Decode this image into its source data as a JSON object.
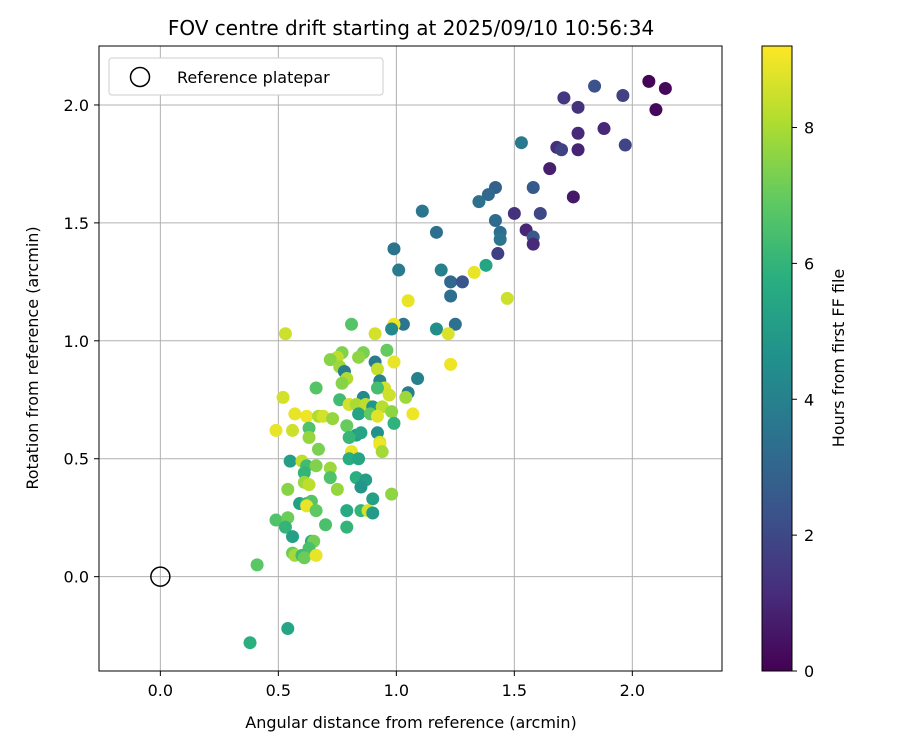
{
  "chart_data": {
    "type": "scatter",
    "title": "FOV centre drift starting at 2025/09/10 10:56:34",
    "xlabel": "Angular distance from reference (arcmin)",
    "ylabel": "Rotation from reference (arcmin)",
    "xlim": [
      -0.26,
      2.38
    ],
    "ylim": [
      -0.4,
      2.25
    ],
    "xticks": [
      "0.0",
      "0.5",
      "1.0",
      "1.5",
      "2.0"
    ],
    "yticks": [
      "0.0",
      "0.5",
      "1.0",
      "1.5",
      "2.0"
    ],
    "grid": true,
    "legend": {
      "position": "top-left",
      "entries": [
        "Reference platepar"
      ]
    },
    "reference": {
      "x": 0,
      "y": 0,
      "label": "Reference platepar"
    },
    "colorbar": {
      "label": "Hours from first FF file",
      "min": 0,
      "max": 9.2,
      "ticks": [
        "0",
        "2",
        "4",
        "6",
        "8"
      ],
      "colormap": "viridis"
    },
    "points": [
      [
        2.07,
        2.1,
        0.1
      ],
      [
        2.14,
        2.07,
        0.2
      ],
      [
        2.1,
        1.98,
        0.2
      ],
      [
        1.96,
        2.04,
        1.8
      ],
      [
        1.84,
        2.08,
        2.3
      ],
      [
        1.71,
        2.03,
        1.5
      ],
      [
        1.77,
        1.99,
        1.3
      ],
      [
        1.77,
        1.88,
        1.1
      ],
      [
        1.88,
        1.9,
        1.0
      ],
      [
        1.97,
        1.83,
        1.9
      ],
      [
        1.68,
        1.82,
        1.2
      ],
      [
        1.7,
        1.81,
        1.8
      ],
      [
        1.77,
        1.81,
        0.9
      ],
      [
        1.65,
        1.73,
        0.8
      ],
      [
        1.53,
        1.84,
        3.7
      ],
      [
        1.58,
        1.65,
        2.6
      ],
      [
        1.75,
        1.61,
        0.6
      ],
      [
        1.42,
        1.65,
        2.8
      ],
      [
        1.39,
        1.62,
        3.1
      ],
      [
        1.35,
        1.59,
        3.4
      ],
      [
        1.5,
        1.54,
        1.3
      ],
      [
        1.61,
        1.54,
        2.0
      ],
      [
        1.42,
        1.51,
        3.2
      ],
      [
        1.55,
        1.47,
        1.0
      ],
      [
        1.44,
        1.46,
        3.3
      ],
      [
        1.44,
        1.43,
        3.6
      ],
      [
        1.58,
        1.44,
        2.5
      ],
      [
        1.58,
        1.41,
        1.1
      ],
      [
        1.43,
        1.37,
        1.7
      ],
      [
        1.11,
        1.55,
        3.6
      ],
      [
        1.17,
        1.46,
        3.3
      ],
      [
        0.99,
        1.39,
        3.5
      ],
      [
        1.01,
        1.3,
        3.8
      ],
      [
        1.19,
        1.3,
        4.0
      ],
      [
        1.23,
        1.25,
        3.1
      ],
      [
        1.23,
        1.19,
        3.3
      ],
      [
        1.28,
        1.25,
        2.4
      ],
      [
        1.38,
        1.32,
        5.4
      ],
      [
        1.33,
        1.29,
        8.9
      ],
      [
        1.47,
        1.18,
        8.5
      ],
      [
        1.05,
        1.17,
        8.9
      ],
      [
        1.17,
        1.05,
        4.5
      ],
      [
        1.25,
        1.07,
        3.4
      ],
      [
        1.22,
        1.03,
        8.7
      ],
      [
        1.03,
        1.07,
        3.6
      ],
      [
        0.99,
        1.07,
        9.0
      ],
      [
        0.98,
        1.05,
        4.3
      ],
      [
        0.81,
        1.07,
        6.7
      ],
      [
        0.53,
        1.03,
        8.5
      ],
      [
        0.91,
        1.03,
        8.6
      ],
      [
        1.23,
        0.9,
        9.0
      ],
      [
        0.77,
        0.95,
        7.4
      ],
      [
        0.86,
        0.95,
        7.3
      ],
      [
        0.96,
        0.96,
        7.0
      ],
      [
        0.75,
        0.93,
        8.3
      ],
      [
        0.72,
        0.92,
        7.5
      ],
      [
        0.84,
        0.93,
        7.6
      ],
      [
        0.91,
        0.91,
        3.8
      ],
      [
        0.99,
        0.91,
        8.9
      ],
      [
        0.76,
        0.89,
        7.8
      ],
      [
        0.92,
        0.88,
        8.4
      ],
      [
        0.78,
        0.87,
        3.9
      ],
      [
        0.93,
        0.83,
        4.1
      ],
      [
        0.79,
        0.84,
        8.1
      ],
      [
        0.77,
        0.82,
        7.5
      ],
      [
        0.66,
        0.8,
        6.7
      ],
      [
        0.95,
        0.8,
        8.6
      ],
      [
        1.05,
        0.78,
        3.9
      ],
      [
        1.09,
        0.84,
        4.0
      ],
      [
        0.97,
        0.77,
        8.5
      ],
      [
        0.52,
        0.76,
        8.6
      ],
      [
        0.92,
        0.8,
        6.4
      ],
      [
        0.76,
        0.75,
        6.3
      ],
      [
        0.86,
        0.76,
        4.3
      ],
      [
        0.8,
        0.73,
        8.6
      ],
      [
        0.83,
        0.73,
        8.0
      ],
      [
        0.87,
        0.73,
        8.3
      ],
      [
        0.9,
        0.72,
        4.8
      ],
      [
        0.94,
        0.72,
        8.2
      ],
      [
        1.04,
        0.76,
        7.8
      ],
      [
        0.84,
        0.69,
        5.3
      ],
      [
        0.89,
        0.69,
        6.9
      ],
      [
        0.92,
        0.68,
        8.8
      ],
      [
        0.98,
        0.7,
        7.6
      ],
      [
        1.07,
        0.69,
        9.0
      ],
      [
        0.57,
        0.69,
        8.9
      ],
      [
        0.62,
        0.68,
        9.0
      ],
      [
        0.67,
        0.68,
        8.1
      ],
      [
        0.69,
        0.68,
        8.6
      ],
      [
        0.73,
        0.67,
        7.7
      ],
      [
        0.63,
        0.63,
        6.6
      ],
      [
        0.79,
        0.64,
        7.0
      ],
      [
        0.99,
        0.65,
        5.9
      ],
      [
        0.56,
        0.62,
        8.5
      ],
      [
        0.63,
        0.59,
        7.7
      ],
      [
        0.49,
        0.62,
        8.9
      ],
      [
        0.83,
        0.6,
        5.1
      ],
      [
        0.85,
        0.61,
        5.4
      ],
      [
        0.8,
        0.59,
        6.1
      ],
      [
        0.92,
        0.61,
        4.6
      ],
      [
        0.93,
        0.57,
        8.6
      ],
      [
        0.93,
        0.56,
        9.0
      ],
      [
        0.67,
        0.54,
        7.3
      ],
      [
        0.81,
        0.53,
        8.9
      ],
      [
        0.94,
        0.53,
        7.9
      ],
      [
        0.8,
        0.5,
        5.7
      ],
      [
        0.84,
        0.5,
        5.4
      ],
      [
        0.55,
        0.49,
        5.1
      ],
      [
        0.6,
        0.49,
        8.3
      ],
      [
        0.62,
        0.47,
        6.3
      ],
      [
        0.61,
        0.44,
        6.0
      ],
      [
        0.66,
        0.47,
        7.4
      ],
      [
        0.72,
        0.46,
        7.8
      ],
      [
        0.83,
        0.42,
        5.8
      ],
      [
        0.87,
        0.41,
        5.1
      ],
      [
        0.72,
        0.42,
        6.6
      ],
      [
        0.61,
        0.4,
        7.8
      ],
      [
        0.63,
        0.39,
        8.3
      ],
      [
        0.85,
        0.38,
        4.8
      ],
      [
        0.75,
        0.37,
        7.7
      ],
      [
        0.54,
        0.37,
        7.5
      ],
      [
        0.59,
        0.31,
        5.2
      ],
      [
        0.62,
        0.31,
        6.2
      ],
      [
        0.64,
        0.32,
        6.7
      ],
      [
        0.9,
        0.33,
        5.2
      ],
      [
        0.98,
        0.35,
        7.6
      ],
      [
        0.62,
        0.3,
        8.9
      ],
      [
        0.66,
        0.28,
        6.9
      ],
      [
        0.79,
        0.28,
        5.6
      ],
      [
        0.85,
        0.28,
        6.0
      ],
      [
        0.88,
        0.28,
        8.6
      ],
      [
        0.9,
        0.27,
        5.0
      ],
      [
        0.49,
        0.24,
        6.6
      ],
      [
        0.54,
        0.25,
        7.1
      ],
      [
        0.53,
        0.21,
        6.0
      ],
      [
        0.7,
        0.22,
        6.5
      ],
      [
        0.79,
        0.21,
        6.0
      ],
      [
        0.56,
        0.17,
        5.2
      ],
      [
        0.64,
        0.15,
        5.8
      ],
      [
        0.65,
        0.15,
        7.2
      ],
      [
        0.63,
        0.12,
        6.5
      ],
      [
        0.56,
        0.1,
        7.1
      ],
      [
        0.57,
        0.09,
        7.9
      ],
      [
        0.6,
        0.09,
        6.3
      ],
      [
        0.61,
        0.08,
        7.1
      ],
      [
        0.66,
        0.09,
        8.9
      ],
      [
        0.41,
        0.05,
        6.8
      ],
      [
        0.38,
        -0.28,
        5.8
      ],
      [
        0.54,
        -0.22,
        5.4
      ]
    ]
  }
}
